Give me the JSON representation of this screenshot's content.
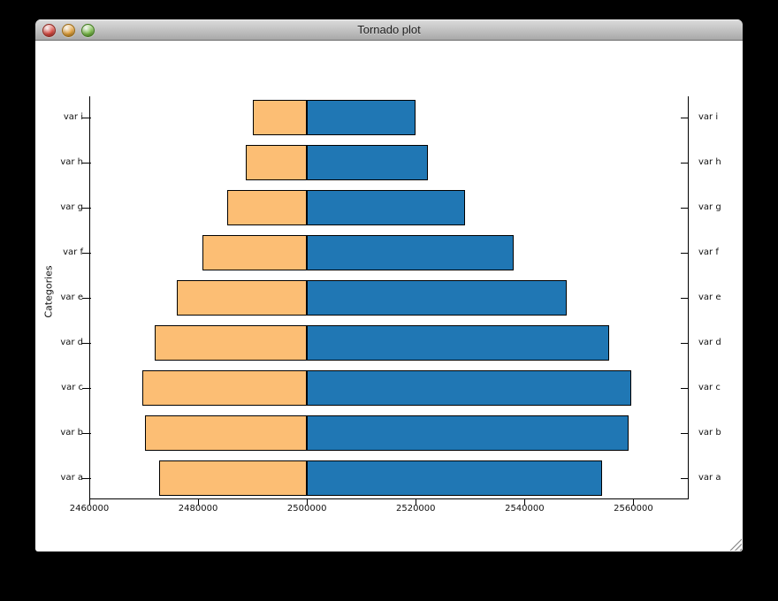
{
  "window": {
    "title": "Tornado plot",
    "buttons": [
      {
        "name": "close",
        "fill": "#dd4a41",
        "edge": "#8e2720"
      },
      {
        "name": "minimize",
        "fill": "#e6a33a",
        "edge": "#9a6a14"
      },
      {
        "name": "zoom",
        "fill": "#7cbf4a",
        "edge": "#3f7a1c"
      }
    ]
  },
  "chart_data": {
    "type": "bar",
    "subtype": "tornado",
    "title": "",
    "xlabel": "",
    "ylabel": "Categories",
    "grid": false,
    "legend": "none",
    "base": 2500000,
    "xlim": [
      2460000,
      2570000
    ],
    "x_ticks": [
      2460000,
      2480000,
      2500000,
      2520000,
      2540000,
      2560000
    ],
    "categories_bottom_to_top": [
      "var a",
      "var b",
      "var c",
      "var d",
      "var e",
      "var f",
      "var g",
      "var h",
      "var i"
    ],
    "bars_top_to_bottom": [
      {
        "label": "var i",
        "low": 2490000,
        "high": 2520000
      },
      {
        "label": "var h",
        "low": 2488700,
        "high": 2522200
      },
      {
        "label": "var g",
        "low": 2485400,
        "high": 2529000
      },
      {
        "label": "var f",
        "low": 2480800,
        "high": 2538000
      },
      {
        "label": "var e",
        "low": 2476100,
        "high": 2547800
      },
      {
        "label": "var d",
        "low": 2472100,
        "high": 2555500
      },
      {
        "label": "var c",
        "low": 2469800,
        "high": 2559600
      },
      {
        "label": "var b",
        "low": 2470300,
        "high": 2559100
      },
      {
        "label": "var a",
        "low": 2472800,
        "high": 2554300
      }
    ],
    "colors": {
      "low_fill": "#fcbe74",
      "high_fill": "#2077b4",
      "edge": "#000000"
    },
    "mirrored_right_axis_labels": true
  }
}
